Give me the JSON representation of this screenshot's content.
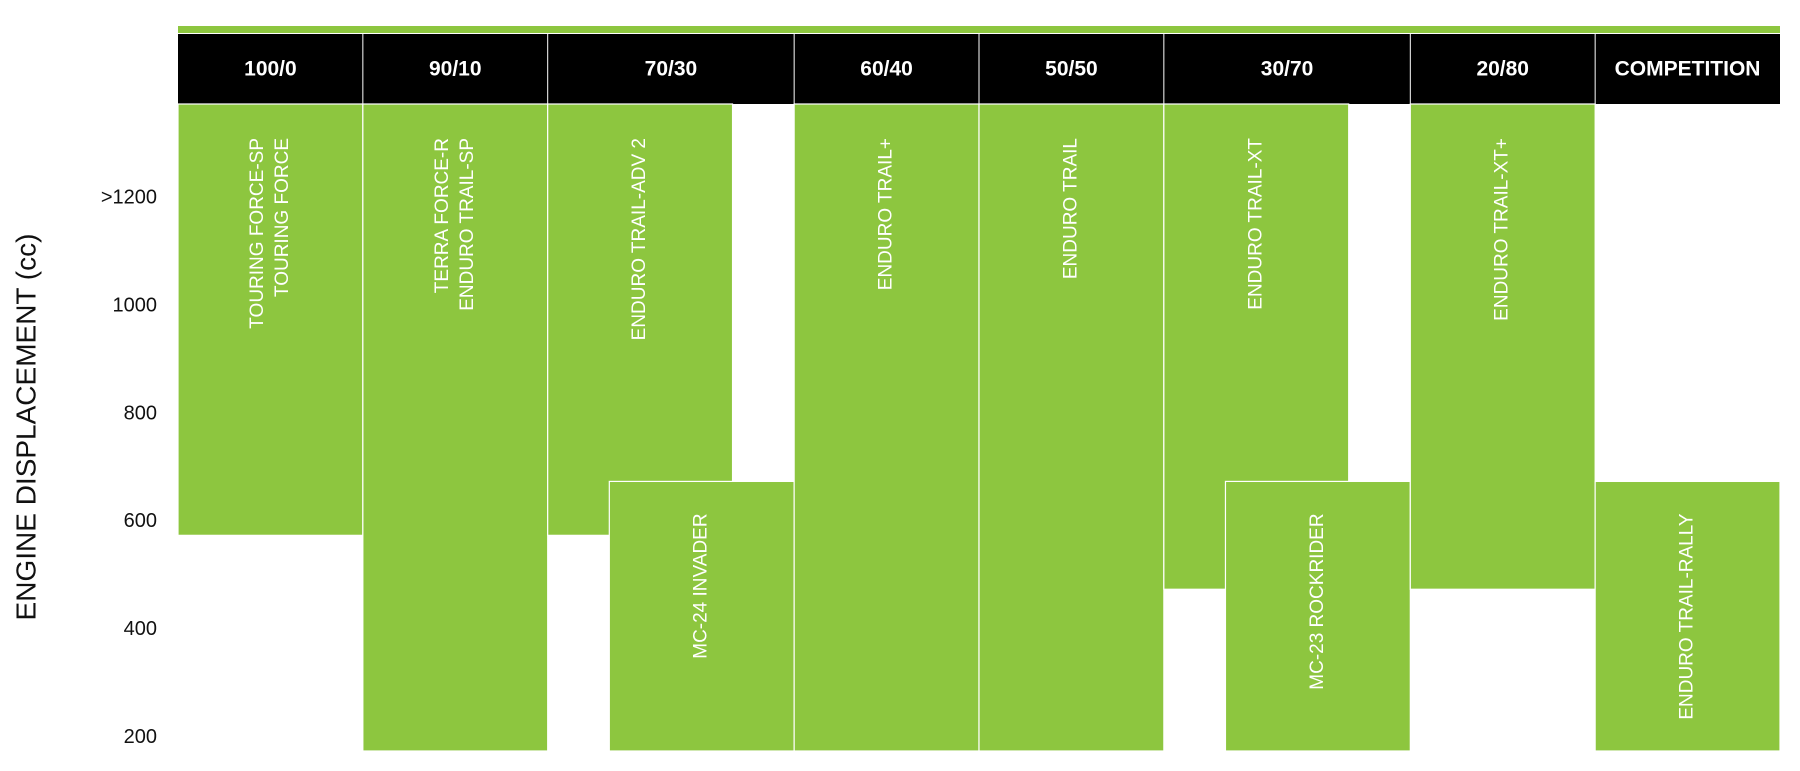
{
  "chart_data": {
    "type": "range",
    "y_label": "ENGINE DISPLACEMENT (cc)",
    "ylim": [
      175,
      1375
    ],
    "yticks": [
      200,
      400,
      600,
      800,
      1000,
      {
        "value": 1200,
        "label": ">1200"
      }
    ],
    "color": "#8dc63f",
    "columns": [
      {
        "name": "100/0",
        "items": [
          {
            "labels": [
              "TOURING FORCE-SP",
              "TOURING FORCE"
            ],
            "low": 575,
            "high": 1375
          }
        ]
      },
      {
        "name": "90/10",
        "items": [
          {
            "labels": [
              "TERRA FORCE-R",
              "ENDURO TRAIL-SP"
            ],
            "low": 175,
            "high": 1375
          }
        ]
      },
      {
        "name": "70/30",
        "items": [
          {
            "labels": [
              "ENDURO TRAIL-ADV 2"
            ],
            "low": 575,
            "high": 1375
          },
          {
            "labels": [
              "MC-24 INVADER"
            ],
            "low": 175,
            "high": 675
          }
        ]
      },
      {
        "name": "60/40",
        "items": [
          {
            "labels": [
              "ENDURO TRAIL+"
            ],
            "low": 175,
            "high": 1375
          }
        ]
      },
      {
        "name": "50/50",
        "items": [
          {
            "labels": [
              "ENDURO TRAIL"
            ],
            "low": 175,
            "high": 1375
          }
        ]
      },
      {
        "name": "30/70",
        "items": [
          {
            "labels": [
              "ENDURO TRAIL-XT"
            ],
            "low": 475,
            "high": 1375
          },
          {
            "labels": [
              "MC-23 ROCKRIDER"
            ],
            "low": 175,
            "high": 675
          }
        ]
      },
      {
        "name": "20/80",
        "items": [
          {
            "labels": [
              "ENDURO TRAIL-XT+"
            ],
            "low": 475,
            "high": 1375
          }
        ]
      },
      {
        "name": "COMPETITION",
        "items": [
          {
            "labels": [
              "ENDURO TRAIL-RALLY"
            ],
            "low": 175,
            "high": 675
          }
        ]
      }
    ]
  }
}
